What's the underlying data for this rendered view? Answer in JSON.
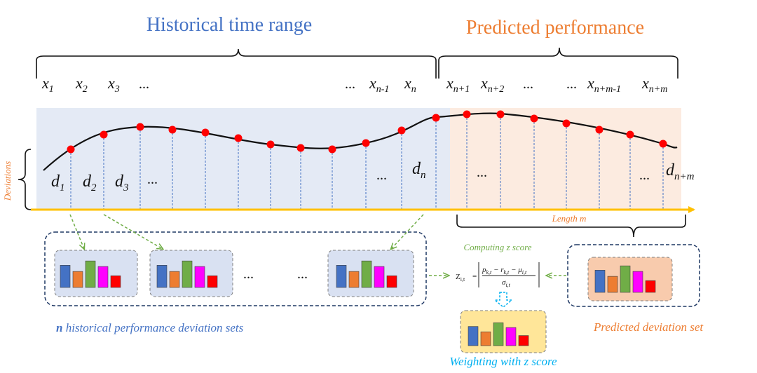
{
  "header": {
    "historical_title": "Historical time range",
    "predicted_title": "Predicted performance"
  },
  "colors": {
    "historical_title": "#4472c4",
    "predicted_title": "#ed7d31",
    "hist_bg": "#e4eaf5",
    "pred_bg": "#fcebe0",
    "axis": "#ffc000",
    "points": "#ff0000",
    "guides": "#4472c4",
    "bars": [
      "#4472c4",
      "#ed7d31",
      "#70ad47",
      "#ff00ff",
      "#ff0000"
    ],
    "set_bg_hist": "#d9e1f2",
    "set_bg_pred": "#f8cbad",
    "set_bg_weight": "#ffe699",
    "green_arrow": "#70ad47",
    "cyan": "#00b0f0",
    "box_border": "#1f3864"
  },
  "x_labels": {
    "x1": "x",
    "x1_sub": "1",
    "x2": "x",
    "x2_sub": "2",
    "x3": "x",
    "x3_sub": "3",
    "ellipsis_a": "...",
    "ellipsis_b": "...",
    "xn1": "x",
    "xn1_sub": "n-1",
    "xn": "x",
    "xn_sub": "n",
    "xp1": "x",
    "xp1_sub": "n+1",
    "xp2": "x",
    "xp2_sub": "n+2",
    "ellipsis_c": "...",
    "ellipsis_d": "...",
    "xpm1": "x",
    "xpm1_sub": "n+m-1",
    "xpm": "x",
    "xpm_sub": "n+m"
  },
  "d_labels": {
    "d1": "d",
    "d1_sub": "1",
    "d2": "d",
    "d2_sub": "2",
    "d3": "d",
    "d3_sub": "3",
    "ellipsis_a": "...",
    "ellipsis_b": "...",
    "dn": "d",
    "dn_sub": "n",
    "ellipsis_c": "...",
    "ellipsis_d": "...",
    "dpm": "d",
    "dpm_sub": "n+m"
  },
  "axis": {
    "deviations_label": "Deviations",
    "length_label": "Length m"
  },
  "sets": {
    "ellipsis_a": "...",
    "ellipsis_b": "...",
    "bar_values": [
      0.72,
      0.52,
      0.86,
      0.68,
      0.38
    ],
    "computing_label": "Computing z score",
    "historical_caption_n": "n",
    "historical_caption_rest": " historical performance deviation sets",
    "predicted_caption": "Predicted deviation set",
    "weighting_caption": "Weighting with z score"
  },
  "formula": {
    "z": "Z",
    "z_sub": "i,t",
    "equals": "=",
    "numerator": "p",
    "num_sub1": "k,t",
    "minus1": " − r",
    "num_sub2": "k,t",
    "minus2": " − μ",
    "num_sub3": "i,t",
    "denominator": "σ",
    "den_sub": "i,t"
  }
}
